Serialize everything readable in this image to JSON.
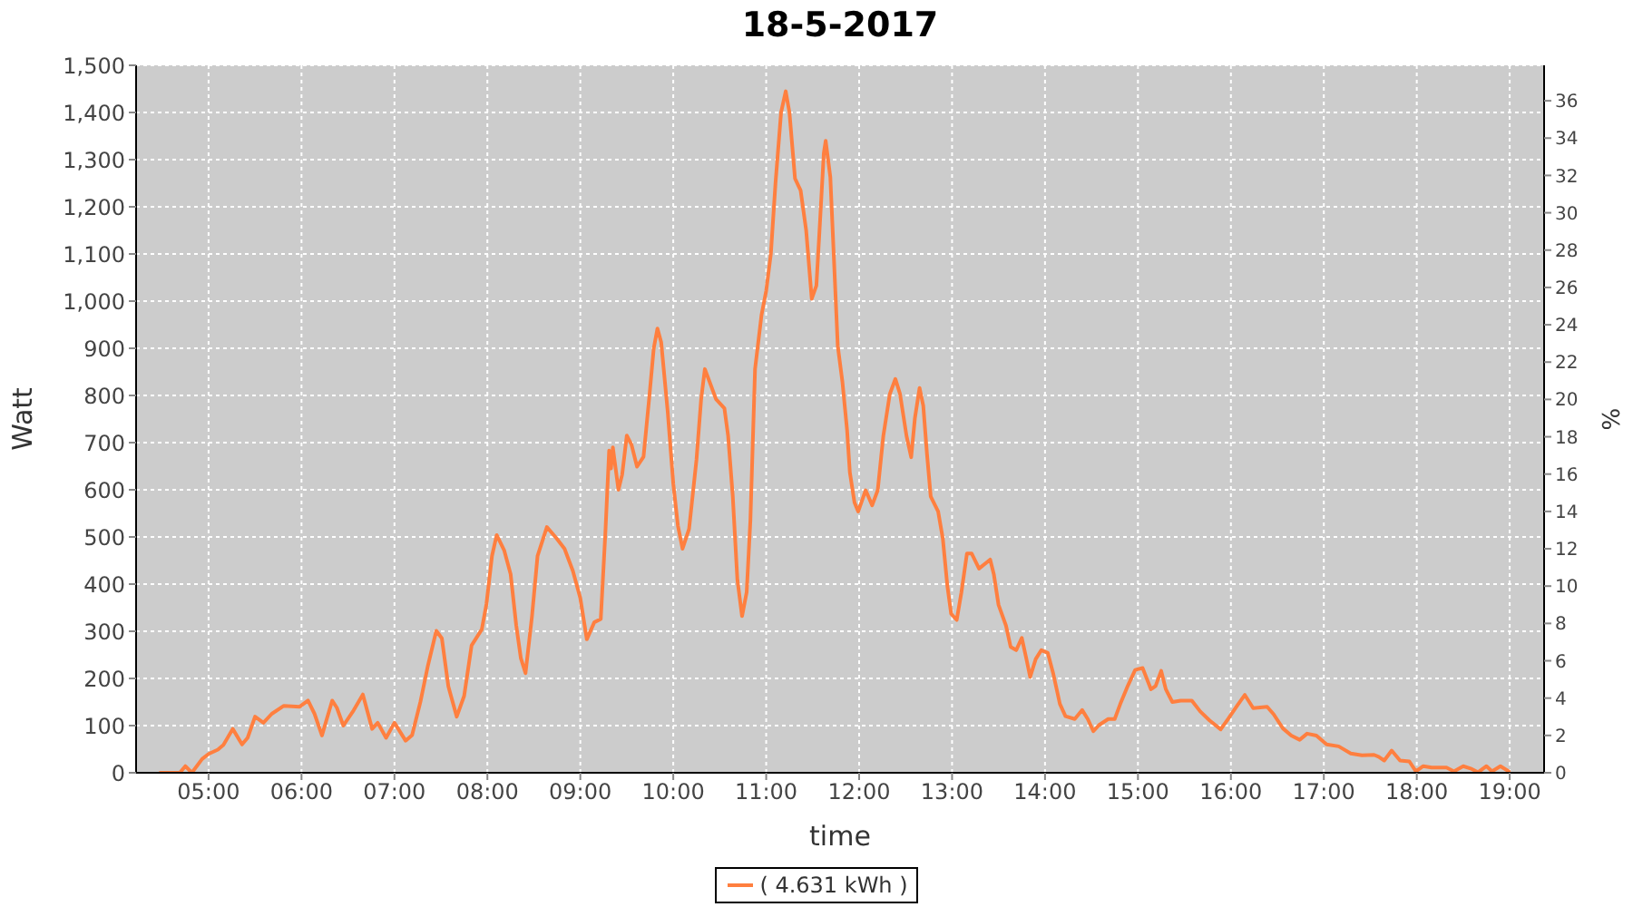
{
  "chart_data": {
    "type": "line",
    "title": "18-5-2017",
    "xlabel": "time",
    "ylabel": "Watt",
    "y2label": "%",
    "x": [
      4.48,
      4.69,
      4.75,
      4.82,
      4.93,
      5.0,
      5.1,
      5.16,
      5.26,
      5.36,
      5.42,
      5.5,
      5.59,
      5.68,
      5.81,
      5.98,
      6.07,
      6.14,
      6.22,
      6.33,
      6.38,
      6.45,
      6.56,
      6.66,
      6.76,
      6.82,
      6.91,
      7.0,
      7.12,
      7.19,
      7.28,
      7.36,
      7.45,
      7.51,
      7.58,
      7.67,
      7.75,
      7.83,
      7.94,
      7.99,
      8.05,
      8.1,
      8.18,
      8.25,
      8.31,
      8.36,
      8.41,
      8.48,
      8.54,
      8.64,
      8.74,
      8.83,
      8.92,
      9.0,
      9.07,
      9.15,
      9.22,
      9.27,
      9.31,
      9.33,
      9.35,
      9.41,
      9.45,
      9.5,
      9.55,
      9.61,
      9.68,
      9.74,
      9.79,
      9.83,
      9.87,
      9.94,
      10.0,
      10.05,
      10.1,
      10.17,
      10.25,
      10.3,
      10.34,
      10.4,
      10.46,
      10.55,
      10.59,
      10.64,
      10.69,
      10.74,
      10.79,
      10.83,
      10.88,
      10.95,
      11.0,
      11.05,
      11.1,
      11.16,
      11.21,
      11.25,
      11.31,
      11.37,
      11.43,
      11.49,
      11.54,
      11.58,
      11.62,
      11.64,
      11.69,
      11.73,
      11.77,
      11.82,
      11.87,
      11.9,
      11.95,
      11.99,
      12.07,
      12.14,
      12.2,
      12.26,
      12.33,
      12.39,
      12.44,
      12.51,
      12.56,
      12.6,
      12.65,
      12.69,
      12.73,
      12.77,
      12.85,
      12.9,
      12.95,
      12.99,
      13.05,
      13.1,
      13.16,
      13.21,
      13.29,
      13.41,
      13.45,
      13.5,
      13.58,
      13.63,
      13.69,
      13.75,
      13.8,
      13.84,
      13.9,
      13.96,
      14.03,
      14.09,
      14.16,
      14.22,
      14.32,
      14.4,
      14.46,
      14.52,
      14.58,
      14.68,
      14.75,
      14.81,
      14.89,
      14.97,
      15.05,
      15.14,
      15.19,
      15.25,
      15.3,
      15.37,
      15.46,
      15.58,
      15.67,
      15.77,
      15.89,
      15.97,
      16.07,
      16.15,
      16.24,
      16.39,
      16.46,
      16.56,
      16.65,
      16.74,
      16.82,
      16.92,
      17.03,
      17.16,
      17.29,
      17.41,
      17.54,
      17.59,
      17.65,
      17.73,
      17.82,
      17.92,
      17.99,
      18.07,
      18.16,
      18.32,
      18.4,
      18.5,
      18.58,
      18.66,
      18.75,
      18.81,
      18.9,
      18.99
    ],
    "series": [
      {
        "name": "( 4.631 kWh )",
        "color": "#ff7f3f",
        "values": [
          0,
          0,
          14,
          0,
          29,
          40,
          49,
          59,
          93,
          60,
          74,
          119,
          106,
          125,
          142,
          140,
          153,
          125,
          79,
          153,
          138,
          100,
          132,
          166,
          93,
          106,
          74,
          106,
          68,
          80,
          151,
          227,
          301,
          285,
          183,
          119,
          163,
          270,
          304,
          358,
          460,
          504,
          472,
          421,
          313,
          243,
          211,
          332,
          460,
          521,
          498,
          475,
          428,
          370,
          283,
          319,
          326,
          511,
          683,
          645,
          690,
          600,
          632,
          715,
          696,
          649,
          670,
          792,
          900,
          942,
          913,
          766,
          613,
          524,
          475,
          517,
          664,
          792,
          856,
          824,
          792,
          773,
          715,
          587,
          409,
          332,
          383,
          536,
          856,
          971,
          1022,
          1100,
          1250,
          1400,
          1445,
          1400,
          1260,
          1235,
          1150,
          1005,
          1033,
          1172,
          1314,
          1340,
          1263,
          1084,
          905,
          829,
          727,
          637,
          573,
          554,
          599,
          567,
          599,
          714,
          803,
          835,
          803,
          714,
          669,
          752,
          816,
          778,
          676,
          586,
          554,
          497,
          395,
          337,
          324,
          382,
          465,
          465,
          433,
          452,
          420,
          356,
          312,
          267,
          260,
          286,
          241,
          203,
          241,
          260,
          254,
          209,
          146,
          120,
          114,
          133,
          114,
          88,
          101,
          114,
          114,
          146,
          184,
          218,
          222,
          177,
          184,
          216,
          177,
          150,
          153,
          153,
          130,
          111,
          92,
          114,
          143,
          165,
          137,
          140,
          124,
          94,
          79,
          70,
          83,
          79,
          60,
          56,
          41,
          37,
          38,
          34,
          26,
          47,
          26,
          24,
          3,
          14,
          11,
          11,
          3,
          14,
          9,
          1,
          14,
          3,
          14,
          3
        ]
      }
    ],
    "xlim": [
      4.22,
      19.37
    ],
    "xticks": [
      {
        "value": 5,
        "label": "05:00"
      },
      {
        "value": 6,
        "label": "06:00"
      },
      {
        "value": 7,
        "label": "07:00"
      },
      {
        "value": 8,
        "label": "08:00"
      },
      {
        "value": 9,
        "label": "09:00"
      },
      {
        "value": 10,
        "label": "10:00"
      },
      {
        "value": 11,
        "label": "11:00"
      },
      {
        "value": 12,
        "label": "12:00"
      },
      {
        "value": 13,
        "label": "13:00"
      },
      {
        "value": 14,
        "label": "14:00"
      },
      {
        "value": 15,
        "label": "15:00"
      },
      {
        "value": 16,
        "label": "16:00"
      },
      {
        "value": 17,
        "label": "17:00"
      },
      {
        "value": 18,
        "label": "18:00"
      },
      {
        "value": 19,
        "label": "19:00"
      }
    ],
    "ylim": [
      0,
      1500
    ],
    "yticks": [
      0,
      100,
      200,
      300,
      400,
      500,
      600,
      700,
      800,
      900,
      {
        "value": 1000,
        "label": "1,000"
      },
      {
        "value": 1100,
        "label": "1,100"
      },
      {
        "value": 1200,
        "label": "1,200"
      },
      {
        "value": 1300,
        "label": "1,300"
      },
      {
        "value": 1400,
        "label": "1,400"
      },
      {
        "value": 1500,
        "label": "1,500"
      }
    ],
    "y2lim": [
      0,
      37.9
    ],
    "y2ticks": [
      0,
      2,
      4,
      6,
      8,
      10,
      12,
      14,
      16,
      18,
      20,
      22,
      24,
      26,
      28,
      30,
      32,
      34,
      36
    ],
    "grid": true,
    "legend": "bottom",
    "marker": "none",
    "line_style": "solid"
  }
}
